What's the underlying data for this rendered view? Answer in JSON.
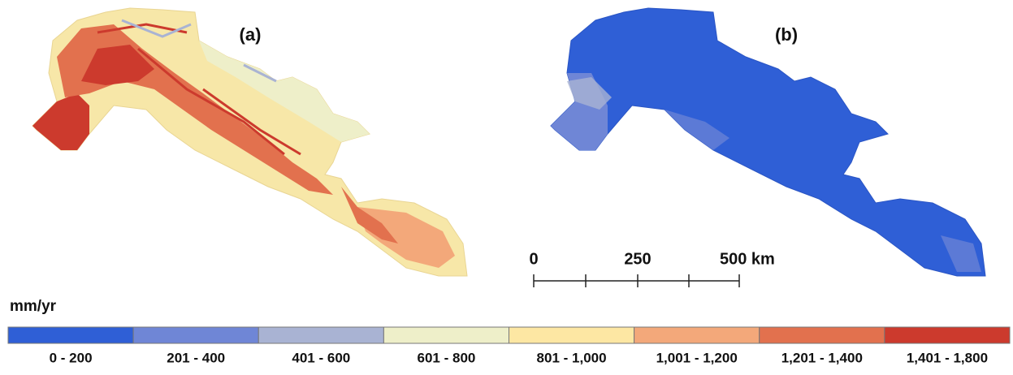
{
  "panels": [
    {
      "label": "(a)"
    },
    {
      "label": "(b)"
    }
  ],
  "scale_bar": {
    "labels": [
      "0",
      "250",
      "500 km"
    ]
  },
  "legend": {
    "unit": "mm/yr",
    "classes": [
      {
        "label": "0 - 200",
        "color": "#2f5fd6"
      },
      {
        "label": "201 - 400",
        "color": "#6f86d6"
      },
      {
        "label": "401 - 600",
        "color": "#a9b3d3"
      },
      {
        "label": "601 - 800",
        "color": "#eeefc9"
      },
      {
        "label": "801 - 1,000",
        "color": "#fde7a3"
      },
      {
        "label": "1,001 - 1,200",
        "color": "#f3a87a"
      },
      {
        "label": "1,201 - 1,400",
        "color": "#e2714e"
      },
      {
        "label": "1,401 - 1,800",
        "color": "#cc3a2d"
      }
    ]
  }
}
